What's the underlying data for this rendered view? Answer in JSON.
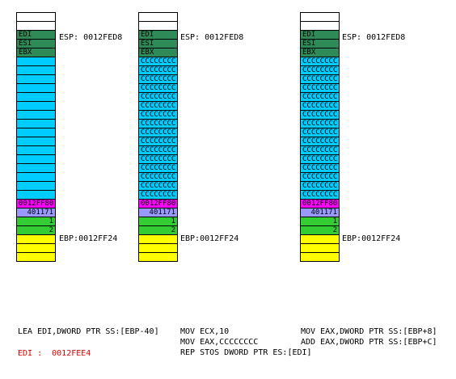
{
  "stacks": [
    {
      "cells": [
        {
          "t": "",
          "k": "white"
        },
        {
          "t": "",
          "k": "white"
        },
        {
          "t": "EDI",
          "k": "reg"
        },
        {
          "t": "ESI",
          "k": "reg"
        },
        {
          "t": "EBX",
          "k": "reg"
        },
        {
          "t": "",
          "k": "cyan"
        },
        {
          "t": "",
          "k": "cyan"
        },
        {
          "t": "",
          "k": "cyan"
        },
        {
          "t": "",
          "k": "cyan"
        },
        {
          "t": "",
          "k": "cyan"
        },
        {
          "t": "",
          "k": "cyan"
        },
        {
          "t": "",
          "k": "cyan"
        },
        {
          "t": "",
          "k": "cyan"
        },
        {
          "t": "",
          "k": "cyan"
        },
        {
          "t": "",
          "k": "cyan"
        },
        {
          "t": "",
          "k": "cyan"
        },
        {
          "t": "",
          "k": "cyan"
        },
        {
          "t": "",
          "k": "cyan"
        },
        {
          "t": "",
          "k": "cyan"
        },
        {
          "t": "",
          "k": "cyan"
        },
        {
          "t": "",
          "k": "cyan"
        },
        {
          "t": "0012FF80",
          "k": "mag"
        },
        {
          "t": "401171",
          "k": "lav"
        },
        {
          "t": "1",
          "k": "grn"
        },
        {
          "t": "2",
          "k": "grn"
        },
        {
          "t": "",
          "k": "yel"
        },
        {
          "t": "",
          "k": "yel"
        },
        {
          "t": "",
          "k": "yel"
        }
      ],
      "esp_label": "ESP: 0012FED8",
      "ebp_label": "EBP:0012FF24"
    },
    {
      "cells": [
        {
          "t": "",
          "k": "white"
        },
        {
          "t": "",
          "k": "white"
        },
        {
          "t": "EDI",
          "k": "reg"
        },
        {
          "t": "ESI",
          "k": "reg"
        },
        {
          "t": "EBX",
          "k": "reg"
        },
        {
          "t": "CCCCCCCC",
          "k": "cyan"
        },
        {
          "t": "CCCCCCCC",
          "k": "cyan"
        },
        {
          "t": "CCCCCCCC",
          "k": "cyan"
        },
        {
          "t": "CCCCCCCC",
          "k": "cyan"
        },
        {
          "t": "CCCCCCCC",
          "k": "cyan"
        },
        {
          "t": "CCCCCCCC",
          "k": "cyan"
        },
        {
          "t": "CCCCCCCC",
          "k": "cyan"
        },
        {
          "t": "CCCCCCCC",
          "k": "cyan"
        },
        {
          "t": "CCCCCCCC",
          "k": "cyan"
        },
        {
          "t": "CCCCCCCC",
          "k": "cyan"
        },
        {
          "t": "CCCCCCCC",
          "k": "cyan"
        },
        {
          "t": "CCCCCCCC",
          "k": "cyan"
        },
        {
          "t": "CCCCCCCC",
          "k": "cyan"
        },
        {
          "t": "CCCCCCCC",
          "k": "cyan"
        },
        {
          "t": "CCCCCCCC",
          "k": "cyan"
        },
        {
          "t": "CCCCCCCC",
          "k": "cyan"
        },
        {
          "t": "0012FF80",
          "k": "mag"
        },
        {
          "t": "401171",
          "k": "lav"
        },
        {
          "t": "1",
          "k": "grn"
        },
        {
          "t": "2",
          "k": "grn"
        },
        {
          "t": "",
          "k": "yel"
        },
        {
          "t": "",
          "k": "yel"
        },
        {
          "t": "",
          "k": "yel"
        }
      ],
      "esp_label": "ESP: 0012FED8",
      "ebp_label": "EBP:0012FF24"
    },
    {
      "cells": [
        {
          "t": "",
          "k": "white"
        },
        {
          "t": "",
          "k": "white"
        },
        {
          "t": "EDI",
          "k": "reg"
        },
        {
          "t": "ESI",
          "k": "reg"
        },
        {
          "t": "EBX",
          "k": "reg"
        },
        {
          "t": "CCCCCCCC",
          "k": "cyan"
        },
        {
          "t": "CCCCCCCC",
          "k": "cyan"
        },
        {
          "t": "CCCCCCCC",
          "k": "cyan"
        },
        {
          "t": "CCCCCCCC",
          "k": "cyan"
        },
        {
          "t": "CCCCCCCC",
          "k": "cyan"
        },
        {
          "t": "CCCCCCCC",
          "k": "cyan"
        },
        {
          "t": "CCCCCCCC",
          "k": "cyan"
        },
        {
          "t": "CCCCCCCC",
          "k": "cyan"
        },
        {
          "t": "CCCCCCCC",
          "k": "cyan"
        },
        {
          "t": "CCCCCCCC",
          "k": "cyan"
        },
        {
          "t": "CCCCCCCC",
          "k": "cyan"
        },
        {
          "t": "CCCCCCCC",
          "k": "cyan"
        },
        {
          "t": "CCCCCCCC",
          "k": "cyan"
        },
        {
          "t": "CCCCCCCC",
          "k": "cyan"
        },
        {
          "t": "CCCCCCCC",
          "k": "cyan"
        },
        {
          "t": "CCCCCCCC",
          "k": "cyan"
        },
        {
          "t": "0012FF80",
          "k": "mag"
        },
        {
          "t": "401171",
          "k": "lav"
        },
        {
          "t": "1",
          "k": "grn"
        },
        {
          "t": "2",
          "k": "grn"
        },
        {
          "t": "",
          "k": "yel"
        },
        {
          "t": "",
          "k": "yel"
        },
        {
          "t": "",
          "k": "yel"
        }
      ],
      "esp_label": "ESP: 0012FED8",
      "ebp_label": "EBP:0012FF24"
    }
  ],
  "code": {
    "col1_line1": "LEA EDI,DWORD PTR SS:[EBP-40]",
    "col1_line2": "EDI :  0012FEE4",
    "col2_line1": "MOV ECX,10",
    "col2_line2": "MOV EAX,CCCCCCCC",
    "col2_line3": "REP STOS DWORD PTR ES:[EDI]",
    "col3_line1": "MOV EAX,DWORD PTR SS:[EBP+8]",
    "col3_line2": "ADD EAX,DWORD PTR SS:[EBP+C]"
  },
  "colors": {
    "white": "#ffffff",
    "reg": "#2e8b57",
    "cyan": "#00ccff",
    "mag": "#ff00ff",
    "lav": "#9999ff",
    "grn": "#33cc33",
    "yel": "#ffff00",
    "note": "#e00000"
  }
}
